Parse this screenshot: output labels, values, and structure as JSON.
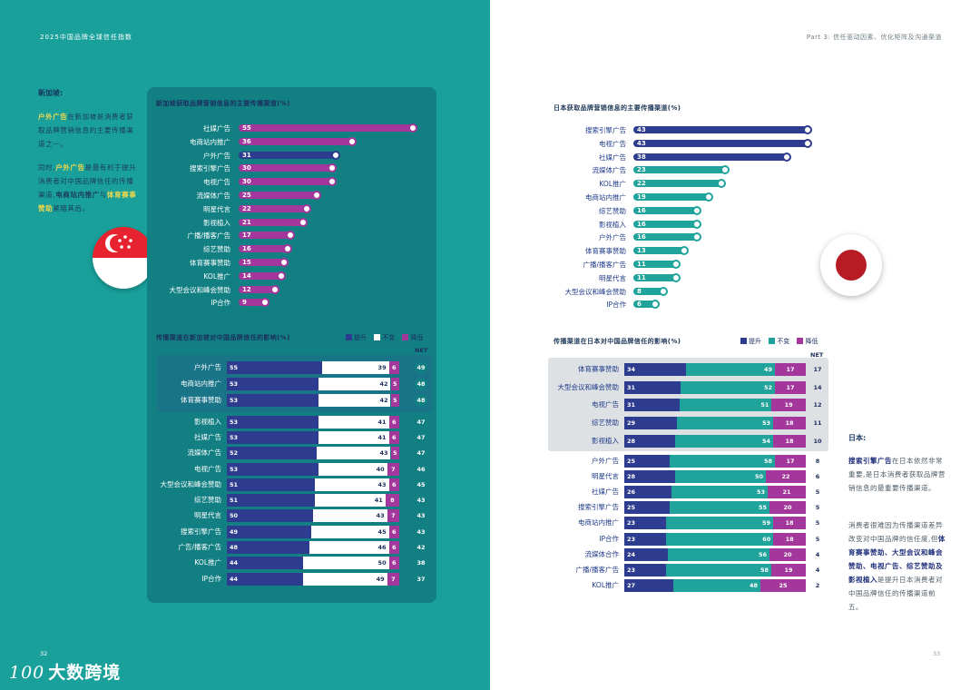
{
  "header": {
    "left": "2025中国品牌全球信任指数",
    "right": "Part 3: 信任驱动因素、优化矩阵及沟通渠道"
  },
  "colors": {
    "teal_page": "#1aa09b",
    "panel": "#127f83",
    "purple": "#a4379c",
    "navy": "#2d3c8e",
    "teal_bar": "#1fa39b",
    "white": "#ffffff"
  },
  "singapore": {
    "section_title": "新加坡:",
    "para1": {
      "p1": "户外广告",
      "p2": "在新加坡是消费者获取品牌营销信息的主要传播渠道之一。"
    },
    "para2": {
      "p1": "同时,",
      "p2": "户外广告",
      "p3": "是最有利于提升消费者对中国品牌信任的传播渠道,",
      "p4": "电商站内推广",
      "p5": "与",
      "p6": "体育赛事赞助",
      "p7": "紧随其后。"
    },
    "flag_icon": "singapore-flag-icon",
    "channel_chart": {
      "title": "新加坡获取品牌营销信息的主要传播渠道(%)",
      "items": [
        {
          "label": "社媒广告",
          "value": 55,
          "color": "#a4379c"
        },
        {
          "label": "电商站内推广",
          "value": 36,
          "color": "#a4379c"
        },
        {
          "label": "户外广告",
          "value": 31,
          "color": "#2d3c8e"
        },
        {
          "label": "搜索引擎广告",
          "value": 30,
          "color": "#a4379c"
        },
        {
          "label": "电视广告",
          "value": 30,
          "color": "#a4379c"
        },
        {
          "label": "流媒体广告",
          "value": 25,
          "color": "#a4379c"
        },
        {
          "label": "明星代言",
          "value": 22,
          "color": "#a4379c"
        },
        {
          "label": "影视植入",
          "value": 21,
          "color": "#a4379c"
        },
        {
          "label": "广播/播客广告",
          "value": 17,
          "color": "#a4379c"
        },
        {
          "label": "综艺赞助",
          "value": 16,
          "color": "#a4379c"
        },
        {
          "label": "体育赛事赞助",
          "value": 15,
          "color": "#a4379c"
        },
        {
          "label": "KOL推广",
          "value": 14,
          "color": "#a4379c"
        },
        {
          "label": "大型会议和峰会赞助",
          "value": 12,
          "color": "#a4379c"
        },
        {
          "label": "IP合作",
          "value": 9,
          "color": "#a4379c"
        }
      ]
    },
    "trust_chart": {
      "title": "传播渠道在新加坡对中国品牌信任的影响(%)",
      "legend": {
        "up": "提升",
        "same": "不变",
        "down": "降低"
      },
      "net_label": "NET",
      "rows": [
        {
          "label": "户外广告",
          "up": 55,
          "same": 39,
          "down": 6,
          "net": 49
        },
        {
          "label": "电商站内推广",
          "up": 53,
          "same": 42,
          "down": 5,
          "net": 48
        },
        {
          "label": "体育赛事赞助",
          "up": 53,
          "same": 42,
          "down": 5,
          "net": 48
        },
        {
          "label": "影视植入",
          "up": 53,
          "same": 41,
          "down": 6,
          "net": 47
        },
        {
          "label": "社媒广告",
          "up": 53,
          "same": 41,
          "down": 6,
          "net": 47
        },
        {
          "label": "流媒体广告",
          "up": 52,
          "same": 43,
          "down": 5,
          "net": 47
        },
        {
          "label": "电视广告",
          "up": 53,
          "same": 40,
          "down": 7,
          "net": 46
        },
        {
          "label": "大型会议和峰会赞助",
          "up": 51,
          "same": 43,
          "down": 6,
          "net": 45
        },
        {
          "label": "综艺赞助",
          "up": 51,
          "same": 41,
          "down": 8,
          "net": 43
        },
        {
          "label": "明星代言",
          "up": 50,
          "same": 43,
          "down": 7,
          "net": 43
        },
        {
          "label": "搜索引擎广告",
          "up": 49,
          "same": 45,
          "down": 6,
          "net": 43
        },
        {
          "label": "广告/播客广告",
          "up": 48,
          "same": 46,
          "down": 6,
          "net": 42
        },
        {
          "label": "KOL推广",
          "up": 44,
          "same": 50,
          "down": 6,
          "net": 38
        },
        {
          "label": "IP合作",
          "up": 44,
          "same": 49,
          "down": 7,
          "net": 37
        }
      ]
    }
  },
  "japan": {
    "section_title": "日本:",
    "para1": {
      "p1": "搜索引擎广告",
      "p2": "在日本依然非常重要,是日本消费者获取品牌营销信息的最重要传播渠道。"
    },
    "para2": {
      "p1": "消费者很难因为传播渠道差异改变对中国品牌的信任度,但",
      "p2": "体育赛事赞助、大型会议和峰会赞助、电视广告、综艺赞助及影视植入",
      "p3": "是提升日本消费者对中国品牌信任的传播渠道前五。"
    },
    "flag_icon": "japan-flag-icon",
    "channel_chart": {
      "title": "日本获取品牌营销信息的主要传播渠道(%)",
      "items": [
        {
          "label": "搜索引擎广告",
          "value": 43,
          "color": "#2d3c8e"
        },
        {
          "label": "电视广告",
          "value": 43,
          "color": "#2d3c8e"
        },
        {
          "label": "社媒广告",
          "value": 38,
          "color": "#2d3c8e"
        },
        {
          "label": "流媒体广告",
          "value": 23,
          "color": "#1fa39b"
        },
        {
          "label": "KOL推广",
          "value": 22,
          "color": "#1fa39b"
        },
        {
          "label": "电商站内推广",
          "value": 19,
          "color": "#1fa39b"
        },
        {
          "label": "综艺赞助",
          "value": 16,
          "color": "#1fa39b"
        },
        {
          "label": "影视植入",
          "value": 16,
          "color": "#1fa39b"
        },
        {
          "label": "户外广告",
          "value": 16,
          "color": "#1fa39b"
        },
        {
          "label": "体育赛事赞助",
          "value": 13,
          "color": "#1fa39b"
        },
        {
          "label": "广播/播客广告",
          "value": 11,
          "color": "#1fa39b"
        },
        {
          "label": "明星代言",
          "value": 11,
          "color": "#1fa39b"
        },
        {
          "label": "大型会议和峰会赞助",
          "value": 8,
          "color": "#1fa39b"
        },
        {
          "label": "IP合作",
          "value": 6,
          "color": "#1fa39b"
        }
      ]
    },
    "trust_chart": {
      "title": "传播渠道在日本对中国品牌信任的影响(%)",
      "legend": {
        "up": "提升",
        "same": "不变",
        "down": "降低"
      },
      "net_label": "NET",
      "rows": [
        {
          "label": "体育赛事赞助",
          "up": 34,
          "same": 49,
          "down": 17,
          "net": 17
        },
        {
          "label": "大型会议和峰会赞助",
          "up": 31,
          "same": 52,
          "down": 17,
          "net": 14
        },
        {
          "label": "电视广告",
          "up": 31,
          "same": 51,
          "down": 19,
          "net": 12
        },
        {
          "label": "综艺赞助",
          "up": 29,
          "same": 53,
          "down": 18,
          "net": 11
        },
        {
          "label": "影视植入",
          "up": 28,
          "same": 54,
          "down": 18,
          "net": 10
        },
        {
          "label": "户外广告",
          "up": 25,
          "same": 58,
          "down": 17,
          "net": 8
        },
        {
          "label": "明星代言",
          "up": 28,
          "same": 50,
          "down": 22,
          "net": 6
        },
        {
          "label": "社媒广告",
          "up": 26,
          "same": 53,
          "down": 21,
          "net": 5
        },
        {
          "label": "搜索引擎广告",
          "up": 25,
          "same": 55,
          "down": 20,
          "net": 5
        },
        {
          "label": "电商站内推广",
          "up": 23,
          "same": 59,
          "down": 18,
          "net": 5
        },
        {
          "label": "IP合作",
          "up": 23,
          "same": 60,
          "down": 18,
          "net": 5
        },
        {
          "label": "流媒体合作",
          "up": 24,
          "same": 56,
          "down": 20,
          "net": 4
        },
        {
          "label": "广播/播客广告",
          "up": 23,
          "same": 58,
          "down": 19,
          "net": 4
        },
        {
          "label": "KOL推广",
          "up": 27,
          "same": 48,
          "down": 25,
          "net": 2
        }
      ]
    }
  },
  "footer": {
    "page_left": "32",
    "page_right": "33",
    "logo_text": "大数跨境",
    "logo_mark": "100"
  },
  "chart_data": [
    {
      "type": "bar",
      "title": "新加坡获取品牌营销信息的主要传播渠道(%)",
      "categories": [
        "社媒广告",
        "电商站内推广",
        "户外广告",
        "搜索引擎广告",
        "电视广告",
        "流媒体广告",
        "明星代言",
        "影视植入",
        "广播/播客广告",
        "综艺赞助",
        "体育赛事赞助",
        "KOL推广",
        "大型会议和峰会赞助",
        "IP合作"
      ],
      "values": [
        55,
        36,
        31,
        30,
        30,
        25,
        22,
        21,
        17,
        16,
        15,
        14,
        12,
        9
      ]
    },
    {
      "type": "bar",
      "title": "日本获取品牌营销信息的主要传播渠道(%)",
      "categories": [
        "搜索引擎广告",
        "电视广告",
        "社媒广告",
        "流媒体广告",
        "KOL推广",
        "电商站内推广",
        "综艺赞助",
        "影视植入",
        "户外广告",
        "体育赛事赞助",
        "广播/播客广告",
        "明星代言",
        "大型会议和峰会赞助",
        "IP合作"
      ],
      "values": [
        43,
        43,
        38,
        23,
        22,
        19,
        16,
        16,
        16,
        13,
        11,
        11,
        8,
        6
      ]
    }
  ]
}
